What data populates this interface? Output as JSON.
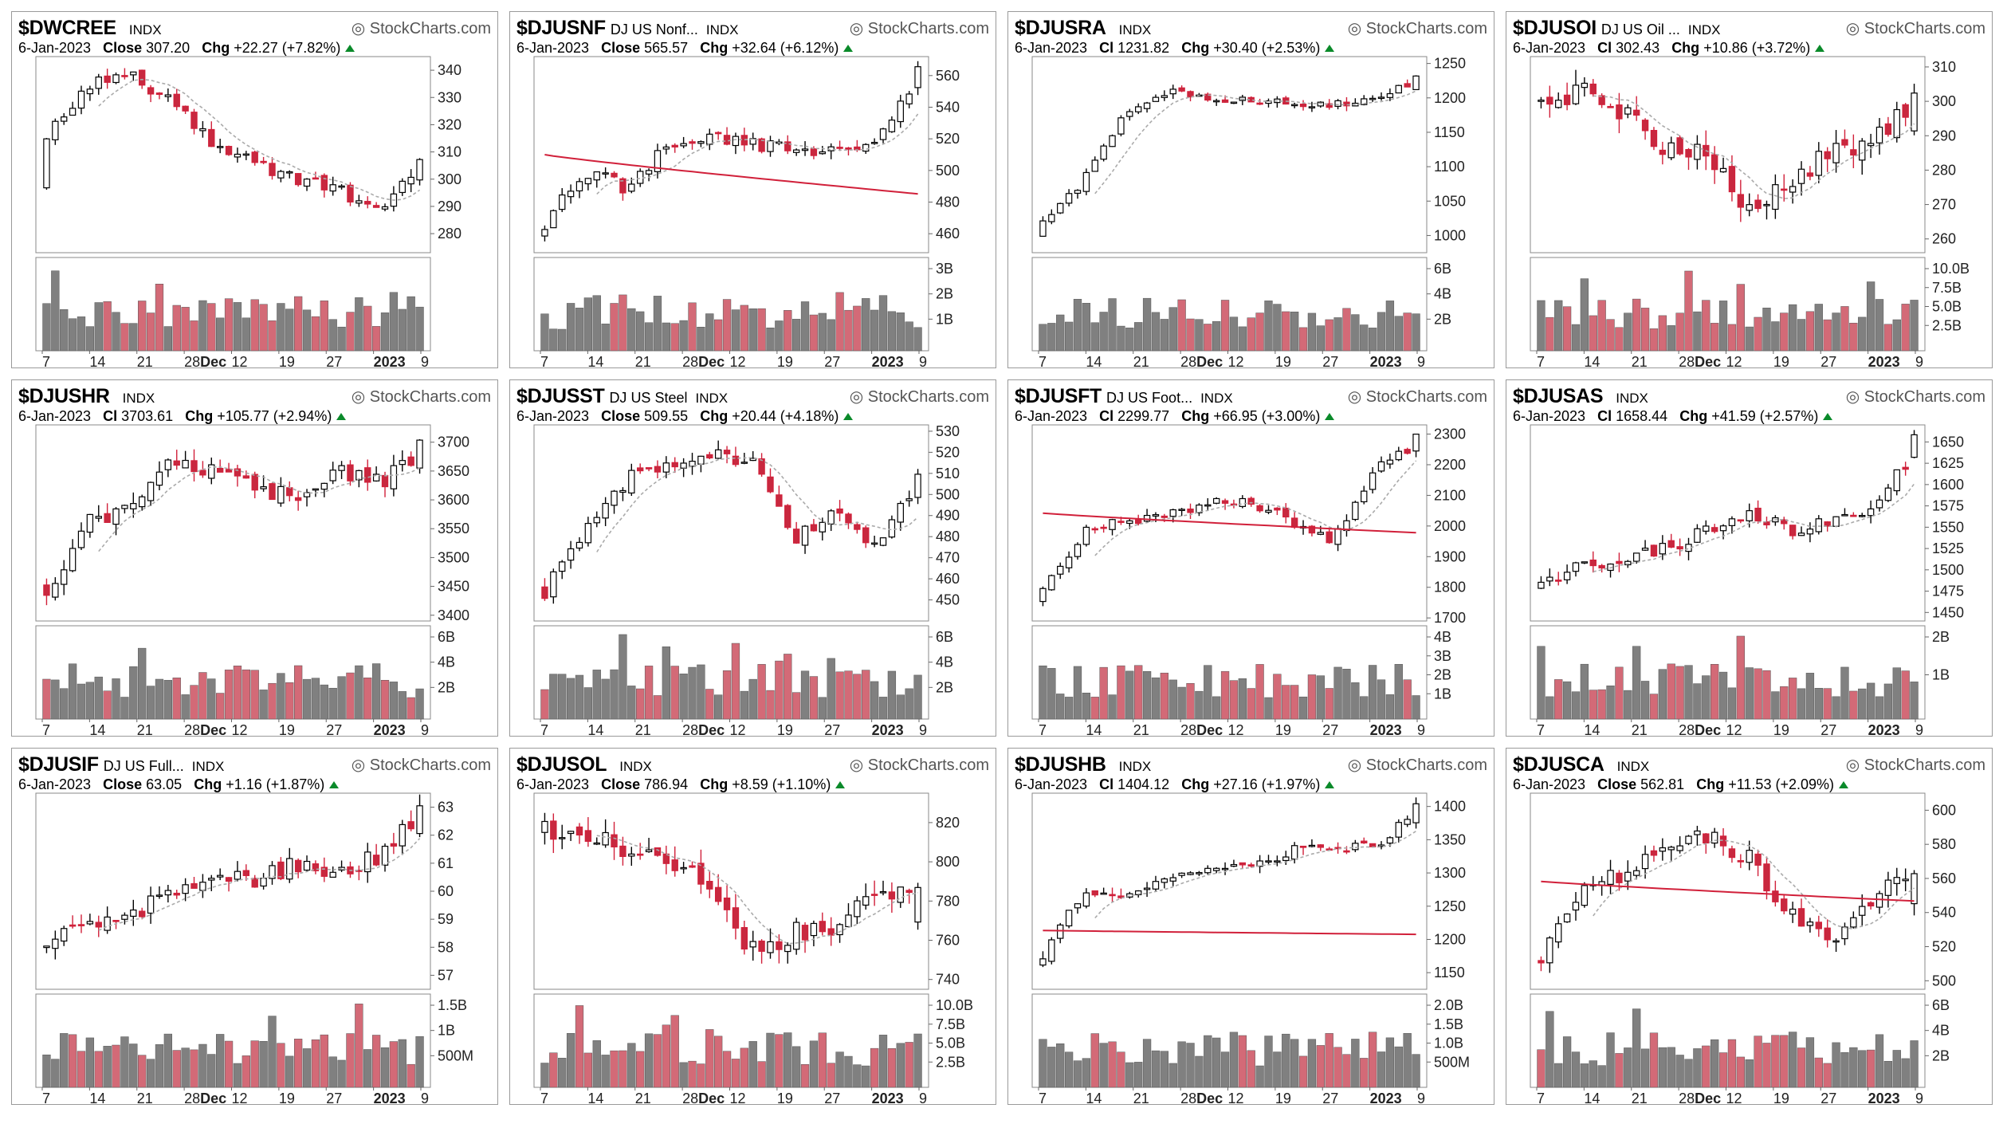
{
  "colors": {
    "up": "#ffffff",
    "down": "#d1203a",
    "down_fill": "#c8283f",
    "vol_gray": "#808080",
    "vol_red": "#d36a77",
    "ma_fast": "#aaaaaa",
    "ma_mid": "#3333a0",
    "ma_slow": "#d1203a"
  },
  "brand": "StockCharts.com",
  "chart_data": [
    {
      "type": "candlestick",
      "symbol": "$DWCREE",
      "description": "",
      "exchange": "INDX",
      "date": "6-Jan-2023",
      "close_label": "Close",
      "close": "307.20",
      "chg_label": "Chg",
      "chg": "+22.27 (+7.82%)",
      "y_ticks": [
        "340",
        "330",
        "320",
        "310",
        "300",
        "290",
        "280"
      ],
      "ylim": [
        273,
        345
      ],
      "vol_ticks": [],
      "vol_max": 1,
      "x_ticks": [
        "7",
        "14",
        "21",
        "28Dec",
        "12",
        "19",
        "27",
        "2023",
        "9"
      ],
      "x_bold": [
        "Dec",
        "2023"
      ],
      "start": 296,
      "end": 307.2,
      "seed": 11,
      "volatility": 3.4,
      "shape": [
        0.6,
        0.9,
        0.95,
        0.8,
        0.55,
        0.45,
        0.35,
        0.3,
        0.15,
        0.45
      ],
      "ma20": true,
      "ma50": "rise_low",
      "ma200": false
    },
    {
      "type": "candlestick",
      "symbol": "$DJUSNF",
      "description": "DJ US Nonf...",
      "exchange": "INDX",
      "date": "6-Jan-2023",
      "close_label": "Close",
      "close": "565.57",
      "chg_label": "Chg",
      "chg": "+32.64 (+6.12%)",
      "y_ticks": [
        "560",
        "540",
        "520",
        "500",
        "480",
        "460"
      ],
      "ylim": [
        448,
        572
      ],
      "vol_ticks": [
        "3B",
        "2B",
        "1B"
      ],
      "vol_max": 3.4,
      "x_ticks": [
        "7",
        "14",
        "21",
        "28Dec",
        "12",
        "19",
        "27",
        "2023",
        "9"
      ],
      "x_bold": [
        "Dec",
        "2023"
      ],
      "start": 460,
      "end": 565.6,
      "seed": 22,
      "volatility": 6,
      "shape": [
        0.1,
        0.4,
        0.3,
        0.55,
        0.6,
        0.55,
        0.55,
        0.5,
        0.55,
        0.95
      ],
      "ma20": true,
      "ma50": "rise_low",
      "ma200": "flat_down"
    },
    {
      "type": "candlestick",
      "symbol": "$DJUSRA",
      "description": "",
      "exchange": "INDX",
      "date": "6-Jan-2023",
      "close_label": "Cl",
      "close": "1231.82",
      "chg_label": "Chg",
      "chg": "+30.40 (+2.53%)",
      "y_ticks": [
        "1250",
        "1200",
        "1150",
        "1100",
        "1050",
        "1000"
      ],
      "ylim": [
        975,
        1260
      ],
      "vol_ticks": [
        "6B",
        "4B",
        "2B"
      ],
      "vol_max": 7,
      "x_ticks": [
        "7",
        "14",
        "21",
        "28Dec",
        "12",
        "19",
        "27",
        "2023",
        "9"
      ],
      "x_bold": [
        "Dec",
        "2023"
      ],
      "start": 1000,
      "end": 1231.8,
      "seed": 33,
      "volatility": 9,
      "shape": [
        0.1,
        0.35,
        0.75,
        0.85,
        0.83,
        0.8,
        0.8,
        0.78,
        0.82,
        0.92
      ],
      "ma20": true,
      "ma50": "rise_mid",
      "ma200": "low_flat"
    },
    {
      "type": "candlestick",
      "symbol": "$DJUSOI",
      "description": "DJ US Oil ...",
      "exchange": "INDX",
      "date": "6-Jan-2023",
      "close_label": "Cl",
      "close": "302.43",
      "chg_label": "Chg",
      "chg": "+10.86 (+3.72%)",
      "y_ticks": [
        "310",
        "300",
        "290",
        "280",
        "270",
        "260"
      ],
      "ylim": [
        256,
        313
      ],
      "vol_ticks": [
        "10.0B",
        "7.5B",
        "5.0B",
        "2.5B"
      ],
      "vol_max": 11,
      "x_ticks": [
        "7",
        "14",
        "21",
        "28Dec",
        "12",
        "19",
        "27",
        "2023",
        "9"
      ],
      "x_bold": [
        "Dec",
        "2023"
      ],
      "start": 300,
      "end": 302.4,
      "seed": 44,
      "volatility": 5,
      "shape": [
        0.8,
        0.85,
        0.75,
        0.55,
        0.5,
        0.15,
        0.35,
        0.5,
        0.6,
        0.8
      ],
      "ma20": true,
      "ma50": "rise_mid",
      "ma200": false
    },
    {
      "type": "candlestick",
      "symbol": "$DJUSHR",
      "description": "",
      "exchange": "INDX",
      "date": "6-Jan-2023",
      "close_label": "Cl",
      "close": "3703.61",
      "chg_label": "Chg",
      "chg": "+105.77 (+2.94%)",
      "y_ticks": [
        "3700",
        "3650",
        "3600",
        "3550",
        "3500",
        "3450",
        "3400"
      ],
      "ylim": [
        3390,
        3730
      ],
      "vol_ticks": [
        "6B",
        "4B",
        "2B"
      ],
      "vol_max": 7,
      "x_ticks": [
        "7",
        "14",
        "21",
        "28Dec",
        "12",
        "19",
        "27",
        "2023",
        "9"
      ],
      "x_bold": [
        "Dec",
        "2023"
      ],
      "start": 3450,
      "end": 3703.6,
      "seed": 55,
      "volatility": 22,
      "shape": [
        0.1,
        0.5,
        0.6,
        0.85,
        0.8,
        0.7,
        0.65,
        0.8,
        0.72,
        0.9
      ],
      "ma20": true,
      "ma50": "rise_low",
      "ma200": false
    },
    {
      "type": "candlestick",
      "symbol": "$DJUSST",
      "description": "DJ US Steel",
      "exchange": "INDX",
      "date": "6-Jan-2023",
      "close_label": "Close",
      "close": "509.55",
      "chg_label": "Chg",
      "chg": "+20.44 (+4.18%)",
      "y_ticks": [
        "530",
        "520",
        "510",
        "500",
        "490",
        "480",
        "470",
        "460",
        "450"
      ],
      "ylim": [
        440,
        533
      ],
      "vol_ticks": [
        "6B",
        "4B",
        "2B"
      ],
      "vol_max": 7,
      "x_ticks": [
        "7",
        "14",
        "21",
        "28Dec",
        "12",
        "19",
        "27",
        "2023",
        "9"
      ],
      "x_bold": [
        "Dec",
        "2023"
      ],
      "start": 455,
      "end": 509.6,
      "seed": 66,
      "volatility": 5,
      "shape": [
        0.1,
        0.45,
        0.75,
        0.85,
        0.9,
        0.85,
        0.4,
        0.55,
        0.35,
        0.75
      ],
      "ma20": true,
      "ma50": "rise_mid",
      "ma200": "rise_flat"
    },
    {
      "type": "candlestick",
      "symbol": "$DJUSFT",
      "description": "DJ US Foot...",
      "exchange": "INDX",
      "date": "6-Jan-2023",
      "close_label": "Cl",
      "close": "2299.77",
      "chg_label": "Chg",
      "chg": "+66.95 (+3.00%)",
      "y_ticks": [
        "2300",
        "2200",
        "2100",
        "2000",
        "1900",
        "1800",
        "1700"
      ],
      "ylim": [
        1690,
        2330
      ],
      "vol_ticks": [
        "4B",
        "3B",
        "2B",
        "1B"
      ],
      "vol_max": 4.3,
      "x_ticks": [
        "7",
        "14",
        "21",
        "28Dec",
        "12",
        "19",
        "27",
        "2023",
        "9"
      ],
      "x_bold": [
        "Dec",
        "2023"
      ],
      "start": 1760,
      "end": 2299.8,
      "seed": 77,
      "volatility": 25,
      "shape": [
        0.1,
        0.45,
        0.5,
        0.55,
        0.6,
        0.62,
        0.5,
        0.4,
        0.8,
        0.95
      ],
      "ma20": true,
      "ma50": "rise_mid",
      "ma200": "down_flat"
    },
    {
      "type": "candlestick",
      "symbol": "$DJUSAS",
      "description": "",
      "exchange": "INDX",
      "date": "6-Jan-2023",
      "close_label": "Cl",
      "close": "1658.44",
      "chg_label": "Chg",
      "chg": "+41.59 (+2.57%)",
      "y_ticks": [
        "1650",
        "1625",
        "1600",
        "1575",
        "1550",
        "1525",
        "1500",
        "1475",
        "1450"
      ],
      "ylim": [
        1440,
        1670
      ],
      "vol_ticks": [
        "2B",
        "1B"
      ],
      "vol_max": 3,
      "x_ticks": [
        "7",
        "14",
        "21",
        "28Dec",
        "12",
        "19",
        "27",
        "2023",
        "9"
      ],
      "x_bold": [
        "Dec",
        "2023"
      ],
      "start": 1480,
      "end": 1658.4,
      "seed": 88,
      "volatility": 12,
      "shape": [
        0.15,
        0.25,
        0.3,
        0.35,
        0.45,
        0.55,
        0.45,
        0.5,
        0.6,
        0.9
      ],
      "ma20": true,
      "ma50": "rise_low",
      "ma200": false
    },
    {
      "type": "candlestick",
      "symbol": "$DJUSIF",
      "description": "DJ US Full...",
      "exchange": "INDX",
      "date": "6-Jan-2023",
      "close_label": "Close",
      "close": "63.05",
      "chg_label": "Chg",
      "chg": "+1.16 (+1.87%)",
      "y_ticks": [
        "63",
        "62",
        "61",
        "60",
        "59",
        "58",
        "57"
      ],
      "ylim": [
        56.5,
        63.5
      ],
      "vol_ticks": [
        "1.5B",
        "1B",
        "500M"
      ],
      "vol_max": 2,
      "x_ticks": [
        "7",
        "14",
        "21",
        "28Dec",
        "12",
        "19",
        "27",
        "2023",
        "9"
      ],
      "x_bold": [
        "Dec",
        "2023"
      ],
      "start": 58,
      "end": 63.05,
      "seed": 99,
      "volatility": 0.45,
      "shape": [
        0.2,
        0.3,
        0.35,
        0.5,
        0.6,
        0.55,
        0.65,
        0.6,
        0.7,
        0.95
      ],
      "ma20": true,
      "ma50": "rise_low",
      "ma200": false
    },
    {
      "type": "candlestick",
      "symbol": "$DJUSOL",
      "description": "",
      "exchange": "INDX",
      "date": "6-Jan-2023",
      "close_label": "Close",
      "close": "786.94",
      "chg_label": "Chg",
      "chg": "+8.59 (+1.10%)",
      "y_ticks": [
        "820",
        "800",
        "780",
        "760",
        "740"
      ],
      "ylim": [
        735,
        835
      ],
      "vol_ticks": [
        "10.0B",
        "7.5B",
        "5.0B",
        "2.5B"
      ],
      "vol_max": 11,
      "x_ticks": [
        "7",
        "14",
        "21",
        "28Dec",
        "12",
        "19",
        "27",
        "2023",
        "9"
      ],
      "x_bold": [
        "Dec",
        "2023"
      ],
      "start": 815,
      "end": 786.9,
      "seed": 111,
      "volatility": 8,
      "shape": [
        0.85,
        0.8,
        0.75,
        0.7,
        0.5,
        0.15,
        0.25,
        0.3,
        0.45,
        0.5
      ],
      "ma20": true,
      "ma50": "rise_low",
      "ma200": false
    },
    {
      "type": "candlestick",
      "symbol": "$DJUSHB",
      "description": "",
      "exchange": "INDX",
      "date": "6-Jan-2023",
      "close_label": "Cl",
      "close": "1404.12",
      "chg_label": "Chg",
      "chg": "+27.16 (+1.97%)",
      "y_ticks": [
        "1400",
        "1350",
        "1300",
        "1250",
        "1200",
        "1150"
      ],
      "ylim": [
        1125,
        1420
      ],
      "vol_ticks": [
        "2.0B",
        "1.5B",
        "1.0B",
        "500M"
      ],
      "vol_max": 2.3,
      "x_ticks": [
        "7",
        "14",
        "21",
        "28Dec",
        "12",
        "19",
        "27",
        "2023",
        "9"
      ],
      "x_bold": [
        "Dec",
        "2023"
      ],
      "start": 1160,
      "end": 1404.1,
      "seed": 122,
      "volatility": 13,
      "shape": [
        0.1,
        0.5,
        0.45,
        0.55,
        0.6,
        0.65,
        0.72,
        0.75,
        0.75,
        0.95
      ],
      "ma20": true,
      "ma50": "rise_mid",
      "ma200": "flat_mid"
    },
    {
      "type": "candlestick",
      "symbol": "$DJUSCA",
      "description": "",
      "exchange": "INDX",
      "date": "6-Jan-2023",
      "close_label": "Close",
      "close": "562.81",
      "chg_label": "Chg",
      "chg": "+11.53 (+2.09%)",
      "y_ticks": [
        "600",
        "580",
        "560",
        "540",
        "520",
        "500"
      ],
      "ylim": [
        495,
        610
      ],
      "vol_ticks": [
        "6B",
        "4B",
        "2B"
      ],
      "vol_max": 7,
      "x_ticks": [
        "7",
        "14",
        "21",
        "28Dec",
        "12",
        "19",
        "27",
        "2023",
        "9"
      ],
      "x_bold": [
        "Dec",
        "2023"
      ],
      "start": 510,
      "end": 562.8,
      "seed": 133,
      "volatility": 8,
      "shape": [
        0.1,
        0.55,
        0.6,
        0.75,
        0.8,
        0.7,
        0.35,
        0.2,
        0.45,
        0.6
      ],
      "ma20": true,
      "ma50": "rise_low",
      "ma200": "down_flat"
    }
  ]
}
